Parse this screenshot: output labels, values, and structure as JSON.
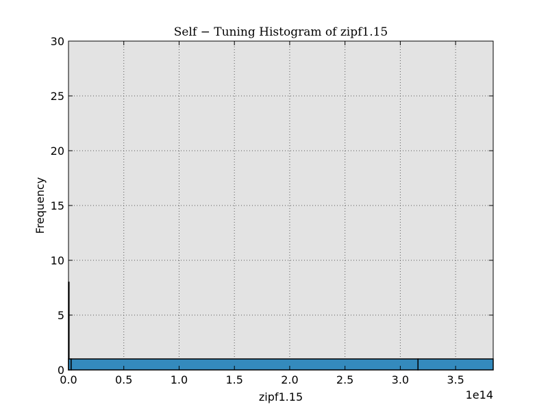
{
  "chart_data": {
    "type": "bar",
    "title": "Self − Tuning Histogram of zipf1.15",
    "xlabel": "zipf1.15",
    "ylabel": "Frequency",
    "x_offset_label": "1e14",
    "xlim": [
      0,
      384000000000000
    ],
    "ylim": [
      0,
      30
    ],
    "xticks": [
      0,
      0.5,
      1.0,
      1.5,
      2.0,
      2.5,
      3.0,
      3.5
    ],
    "xtick_labels": [
      "0.0",
      "0.5",
      "1.0",
      "1.5",
      "2.0",
      "2.5",
      "3.0",
      "3.5"
    ],
    "yticks": [
      0,
      5,
      10,
      15,
      20,
      25,
      30
    ],
    "ytick_labels": [
      "0",
      "5",
      "10",
      "15",
      "20",
      "25",
      "30"
    ],
    "grid": true,
    "colors": {
      "plot_background": "#e3e3e3",
      "bar_fill": "#348abd",
      "bar_edge": "#000000",
      "grid": "#555555"
    },
    "bins": [
      {
        "x0": 0,
        "x1": 40000000000,
        "count": 8
      },
      {
        "x0": 40000000000,
        "x1": 2400000000000,
        "count": 1
      },
      {
        "x0": 2400000000000,
        "x1": 316000000000000,
        "count": 1
      },
      {
        "x0": 316000000000000,
        "x1": 384000000000000,
        "count": 1
      }
    ]
  }
}
